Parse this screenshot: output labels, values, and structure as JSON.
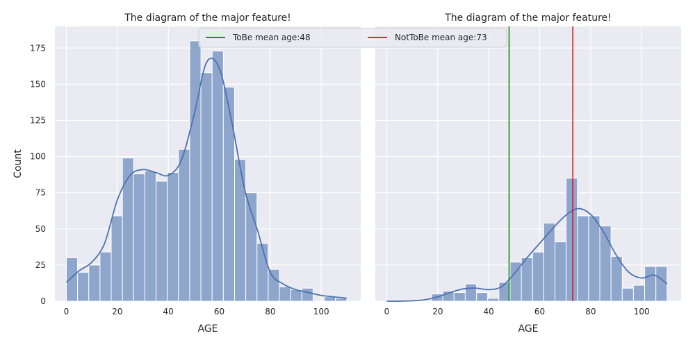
{
  "chart_data": [
    {
      "type": "bar",
      "subtype": "histogram",
      "title": "The diagram of the major feature!",
      "xlabel": "AGE",
      "ylabel": "Count",
      "xlim": [
        -4.5,
        115.5
      ],
      "ylim": [
        0,
        190
      ],
      "xticks": [
        0,
        20,
        40,
        60,
        80,
        100
      ],
      "yticks": [
        0,
        25,
        50,
        75,
        100,
        125,
        150,
        175
      ],
      "bin_edges": [
        0,
        4.4,
        8.8,
        13.2,
        17.6,
        22,
        26.4,
        30.8,
        35.2,
        39.6,
        44,
        48.4,
        52.8,
        57.2,
        61.6,
        66,
        70.4,
        74.8,
        79.2,
        83.6,
        88,
        92.4,
        96.8,
        101.2,
        105.6,
        110
      ],
      "values": [
        30,
        20,
        25,
        34,
        59,
        99,
        88,
        90,
        83,
        89,
        105,
        180,
        158,
        173,
        148,
        98,
        75,
        40,
        22,
        10,
        8,
        9,
        0,
        3,
        2
      ],
      "kde": {
        "x": [
          0,
          5,
          10,
          15,
          20,
          25,
          30,
          35,
          40,
          45,
          50,
          55,
          60,
          65,
          70,
          75,
          80,
          85,
          90,
          95,
          100,
          105,
          110
        ],
        "y": [
          13,
          21,
          27,
          40,
          70,
          87,
          91,
          89,
          87,
          97,
          128,
          165,
          161,
          123,
          77,
          49,
          20,
          12,
          8,
          6,
          4,
          3,
          2
        ]
      },
      "bar_color": "#8ea5cc",
      "line_color": "#4c72b0",
      "grid": true
    },
    {
      "type": "bar",
      "subtype": "histogram",
      "title": "The diagram of the major feature!",
      "xlabel": "AGE",
      "ylabel": "",
      "xlim": [
        -4.5,
        115.5
      ],
      "ylim": [
        0,
        190
      ],
      "xticks": [
        0,
        20,
        40,
        60,
        80,
        100
      ],
      "bin_edges": [
        0,
        4.4,
        8.8,
        13.2,
        17.6,
        22,
        26.4,
        30.8,
        35.2,
        39.6,
        44,
        48.4,
        52.8,
        57.2,
        61.6,
        66,
        70.4,
        74.8,
        79.2,
        83.6,
        88,
        92.4,
        96.8,
        101.2,
        105.6,
        110
      ],
      "values": [
        0,
        0,
        0,
        0,
        5,
        7,
        6,
        12,
        6,
        2,
        13,
        27,
        30,
        34,
        54,
        41,
        85,
        59,
        59,
        52,
        31,
        9,
        11,
        24,
        24
      ],
      "kde": {
        "x": [
          0,
          5,
          10,
          15,
          20,
          25,
          30,
          35,
          40,
          45,
          50,
          55,
          60,
          65,
          70,
          75,
          80,
          85,
          90,
          95,
          100,
          105,
          110
        ],
        "y": [
          0,
          0,
          0.3,
          1,
          3,
          6,
          8.5,
          9,
          8,
          10,
          19,
          30,
          40,
          50,
          59,
          64,
          60,
          48,
          32,
          20,
          16,
          18,
          12
        ]
      },
      "vlines": [
        {
          "x": 48,
          "color": "#008000",
          "label": "ToBe mean age:48"
        },
        {
          "x": 73,
          "color": "#e8000b",
          "label": "NotToBe mean age:73"
        }
      ],
      "bar_color": "#8ea5cc",
      "line_color": "#4c72b0",
      "grid": true
    }
  ]
}
